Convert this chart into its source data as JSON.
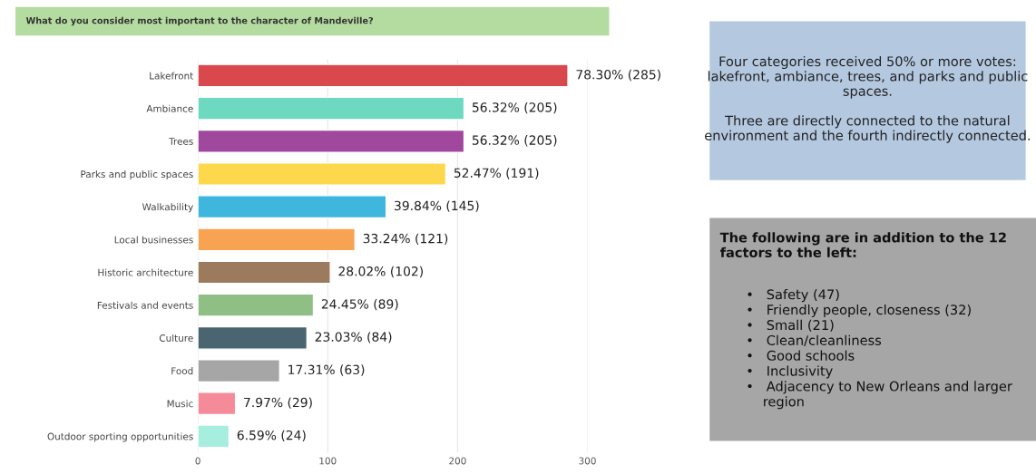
{
  "chart_data": {
    "type": "bar",
    "orientation": "horizontal",
    "title": "What do you consider most important to the character of Mandeville?",
    "categories": [
      "Lakefront",
      "Ambiance",
      "Trees",
      "Parks and public spaces",
      "Walkability",
      "Local businesses",
      "Historic architecture",
      "Festivals and events",
      "Culture",
      "Food",
      "Music",
      "Outdoor sporting opportunities"
    ],
    "values": [
      285,
      205,
      205,
      191,
      145,
      121,
      102,
      89,
      84,
      63,
      29,
      24
    ],
    "value_labels": [
      "78.30% (285)",
      "56.32% (205)",
      "56.32% (205)",
      "52.47% (191)",
      "39.84% (145)",
      "33.24% (121)",
      "28.02% (102)",
      "24.45% (89)",
      "23.03% (84)",
      "17.31% (63)",
      "7.97% (29)",
      "6.59% (24)"
    ],
    "colors": [
      "#d9484c",
      "#6dd9c0",
      "#a0479e",
      "#fdd84d",
      "#3fb6de",
      "#f7a352",
      "#9c7a5e",
      "#8fbf85",
      "#4a6470",
      "#a6a6a6",
      "#f58b98",
      "#a6eedd"
    ],
    "xlim": [
      0,
      300
    ],
    "xticks": [
      0,
      100,
      200,
      300
    ],
    "grid": "x",
    "legend": false,
    "annotations": [
      "Four categories received 50% or more votes: lakefront, ambiance, trees, and parks and public spaces.\n\nThree are directly connected to the natural environment and the fourth indirectly connected.",
      "The following are in addition to the 12 factors to the left:",
      "•   Safety (47)\n•   Friendly people, closeness (32)\n•   Small (21)\n•   Clean/cleanliness\n•   Good schools\n•   Inclusivity\n•   Adjacency to New Orleans and larger\n    region"
    ]
  }
}
